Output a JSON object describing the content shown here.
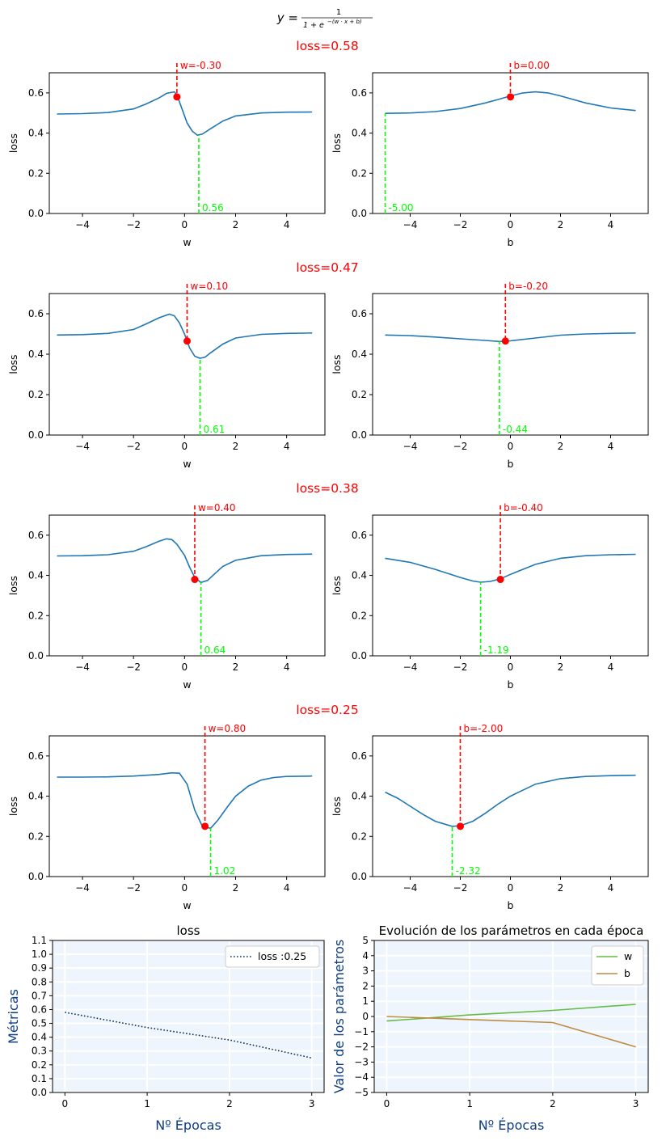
{
  "figure": {
    "formula": {
      "lhs": "y =",
      "numerator": "1",
      "denominator_base": "1 + e",
      "exponent": "−(w · x + b)"
    }
  },
  "colors": {
    "curve": "#1f77b4",
    "current_marker": "#ff0000",
    "minimum_marker": "#00ff00",
    "loss_series": "#0b2e59",
    "w_series": "#66bb44",
    "b_series": "#bf8c40",
    "history_background": "#eef5fd",
    "history_label": "#0d3d80"
  },
  "chart_data": [
    {
      "type": "line",
      "row": 0,
      "panel": "w",
      "row_title": "loss=0.58",
      "xlabel": "w",
      "ylabel": "loss",
      "xlim": [
        -5.3,
        5.5
      ],
      "ylim": [
        0,
        0.7
      ],
      "xticks": [
        -4,
        -2,
        0,
        2,
        4
      ],
      "yticks": [
        0.0,
        0.2,
        0.4,
        0.6
      ],
      "curve": {
        "x": [
          -5,
          -4,
          -3,
          -2,
          -1.5,
          -1,
          -0.7,
          -0.4,
          -0.3,
          -0.1,
          0.1,
          0.3,
          0.5,
          0.7,
          1,
          1.5,
          2,
          3,
          4,
          5
        ],
        "y": [
          0.495,
          0.497,
          0.502,
          0.52,
          0.545,
          0.575,
          0.598,
          0.605,
          0.59,
          0.52,
          0.45,
          0.41,
          0.39,
          0.395,
          0.42,
          0.46,
          0.485,
          0.5,
          0.504,
          0.505
        ]
      },
      "current": {
        "x": -0.3,
        "y": 0.58,
        "label": "w=-0.30"
      },
      "minimum": {
        "x": 0.56,
        "y": 0.39,
        "label": "0.56"
      }
    },
    {
      "type": "line",
      "row": 0,
      "panel": "b",
      "xlabel": "b",
      "ylabel": "loss",
      "xlim": [
        -5.5,
        5.5
      ],
      "ylim": [
        0,
        0.7
      ],
      "xticks": [
        -4,
        -2,
        0,
        2,
        4
      ],
      "yticks": [
        0.0,
        0.2,
        0.4,
        0.6
      ],
      "curve": {
        "x": [
          -5,
          -4,
          -3,
          -2,
          -1,
          -0.5,
          0,
          0.5,
          1,
          1.5,
          2,
          3,
          4,
          5
        ],
        "y": [
          0.498,
          0.5,
          0.507,
          0.522,
          0.55,
          0.567,
          0.585,
          0.6,
          0.605,
          0.6,
          0.585,
          0.55,
          0.525,
          0.512
        ]
      },
      "current": {
        "x": 0.0,
        "y": 0.58,
        "label": "b=0.00"
      },
      "minimum": {
        "x": -5.0,
        "y": 0.498,
        "label": "-5.00"
      }
    },
    {
      "type": "line",
      "row": 1,
      "panel": "w",
      "row_title": "loss=0.47",
      "xlabel": "w",
      "ylabel": "loss",
      "xlim": [
        -5.3,
        5.5
      ],
      "ylim": [
        0,
        0.7
      ],
      "xticks": [
        -4,
        -2,
        0,
        2,
        4
      ],
      "yticks": [
        0.0,
        0.2,
        0.4,
        0.6
      ],
      "curve": {
        "x": [
          -5,
          -4,
          -3,
          -2,
          -1.5,
          -1,
          -0.6,
          -0.4,
          -0.2,
          0,
          0.2,
          0.4,
          0.6,
          0.8,
          1,
          1.5,
          2,
          3,
          4,
          5
        ],
        "y": [
          0.495,
          0.497,
          0.503,
          0.522,
          0.55,
          0.58,
          0.598,
          0.59,
          0.555,
          0.5,
          0.43,
          0.39,
          0.38,
          0.385,
          0.405,
          0.45,
          0.48,
          0.498,
          0.503,
          0.505
        ]
      },
      "current": {
        "x": 0.1,
        "y": 0.465,
        "label": "w=0.10"
      },
      "minimum": {
        "x": 0.61,
        "y": 0.38,
        "label": "0.61"
      }
    },
    {
      "type": "line",
      "row": 1,
      "panel": "b",
      "xlabel": "b",
      "ylabel": "loss",
      "xlim": [
        -5.5,
        5.5
      ],
      "ylim": [
        0,
        0.7
      ],
      "xticks": [
        -4,
        -2,
        0,
        2,
        4
      ],
      "yticks": [
        0.0,
        0.2,
        0.4,
        0.6
      ],
      "curve": {
        "x": [
          -5,
          -4,
          -3,
          -2,
          -1,
          -0.44,
          0,
          1,
          2,
          3,
          4,
          5
        ],
        "y": [
          0.495,
          0.492,
          0.485,
          0.476,
          0.468,
          0.463,
          0.466,
          0.48,
          0.494,
          0.5,
          0.503,
          0.505
        ]
      },
      "current": {
        "x": -0.2,
        "y": 0.465,
        "label": "b=-0.20"
      },
      "minimum": {
        "x": -0.44,
        "y": 0.463,
        "label": "-0.44"
      }
    },
    {
      "type": "line",
      "row": 2,
      "panel": "w",
      "row_title": "loss=0.38",
      "xlabel": "w",
      "ylabel": "loss",
      "xlim": [
        -5.3,
        5.5
      ],
      "ylim": [
        0,
        0.7
      ],
      "xticks": [
        -4,
        -2,
        0,
        2,
        4
      ],
      "yticks": [
        0.0,
        0.2,
        0.4,
        0.6
      ],
      "curve": {
        "x": [
          -5,
          -4,
          -3,
          -2,
          -1.5,
          -1,
          -0.7,
          -0.5,
          -0.3,
          0,
          0.2,
          0.4,
          0.64,
          0.9,
          1.2,
          1.5,
          2,
          3,
          4,
          5
        ],
        "y": [
          0.497,
          0.498,
          0.503,
          0.52,
          0.543,
          0.57,
          0.582,
          0.578,
          0.555,
          0.5,
          0.44,
          0.39,
          0.365,
          0.375,
          0.41,
          0.445,
          0.475,
          0.498,
          0.504,
          0.506
        ]
      },
      "current": {
        "x": 0.4,
        "y": 0.38,
        "label": "w=0.40"
      },
      "minimum": {
        "x": 0.64,
        "y": 0.365,
        "label": "0.64"
      }
    },
    {
      "type": "line",
      "row": 2,
      "panel": "b",
      "xlabel": "b",
      "ylabel": "loss",
      "xlim": [
        -5.5,
        5.5
      ],
      "ylim": [
        0,
        0.7
      ],
      "xticks": [
        -4,
        -2,
        0,
        2,
        4
      ],
      "yticks": [
        0.0,
        0.2,
        0.4,
        0.6
      ],
      "curve": {
        "x": [
          -5,
          -4,
          -3,
          -2,
          -1.5,
          -1.19,
          -0.8,
          -0.4,
          0,
          1,
          2,
          3,
          4,
          5
        ],
        "y": [
          0.485,
          0.465,
          0.43,
          0.39,
          0.372,
          0.366,
          0.37,
          0.383,
          0.405,
          0.455,
          0.485,
          0.498,
          0.503,
          0.505
        ]
      },
      "current": {
        "x": -0.4,
        "y": 0.38,
        "label": "b=-0.40"
      },
      "minimum": {
        "x": -1.19,
        "y": 0.366,
        "label": "-1.19"
      }
    },
    {
      "type": "line",
      "row": 3,
      "panel": "w",
      "row_title": "loss=0.25",
      "xlabel": "w",
      "ylabel": "loss",
      "xlim": [
        -5.3,
        5.5
      ],
      "ylim": [
        0,
        0.7
      ],
      "xticks": [
        -4,
        -2,
        0,
        2,
        4
      ],
      "yticks": [
        0.0,
        0.2,
        0.4,
        0.6
      ],
      "curve": {
        "x": [
          -5,
          -4,
          -3,
          -2,
          -1,
          -0.5,
          -0.2,
          0.1,
          0.4,
          0.7,
          1.02,
          1.3,
          1.7,
          2,
          2.5,
          3,
          3.5,
          4,
          5
        ],
        "y": [
          0.495,
          0.495,
          0.496,
          0.5,
          0.508,
          0.516,
          0.514,
          0.46,
          0.33,
          0.25,
          0.24,
          0.28,
          0.35,
          0.4,
          0.45,
          0.48,
          0.493,
          0.498,
          0.5
        ]
      },
      "current": {
        "x": 0.8,
        "y": 0.25,
        "label": "w=0.80"
      },
      "minimum": {
        "x": 1.02,
        "y": 0.24,
        "label": "1.02"
      }
    },
    {
      "type": "line",
      "row": 3,
      "panel": "b",
      "xlabel": "b",
      "ylabel": "loss",
      "xlim": [
        -5.5,
        5.5
      ],
      "ylim": [
        0,
        0.7
      ],
      "xticks": [
        -4,
        -2,
        0,
        2,
        4
      ],
      "yticks": [
        0.0,
        0.2,
        0.4,
        0.6
      ],
      "curve": {
        "x": [
          -5,
          -4.5,
          -4,
          -3.5,
          -3,
          -2.32,
          -2,
          -1.5,
          -1,
          -0.5,
          0,
          1,
          2,
          3,
          4,
          5
        ],
        "y": [
          0.42,
          0.39,
          0.35,
          0.31,
          0.275,
          0.25,
          0.253,
          0.275,
          0.315,
          0.36,
          0.4,
          0.46,
          0.487,
          0.498,
          0.502,
          0.504
        ]
      },
      "current": {
        "x": -2.0,
        "y": 0.25,
        "label": "b=-2.00"
      },
      "minimum": {
        "x": -2.32,
        "y": 0.25,
        "label": "-2.32"
      }
    },
    {
      "type": "line",
      "panel": "history-loss",
      "title": "loss",
      "xlabel": "Nº Épocas",
      "ylabel": "Métricas",
      "xlim": [
        -0.15,
        3.15
      ],
      "ylim": [
        0,
        1.1
      ],
      "xticks": [
        0,
        1,
        2,
        3
      ],
      "yticks": [
        0.0,
        0.1,
        0.2,
        0.3,
        0.4,
        0.5,
        0.6,
        0.7,
        0.8,
        0.9,
        1.0,
        1.1
      ],
      "grid": true,
      "legend": "top-right",
      "series": [
        {
          "name": "loss :0.25",
          "style": "dotted",
          "x": [
            0,
            1,
            2,
            3
          ],
          "values": [
            0.58,
            0.47,
            0.38,
            0.25
          ]
        }
      ]
    },
    {
      "type": "line",
      "panel": "history-params",
      "title": "Evolución de los parámetros en cada época",
      "xlabel": "Nº Épocas",
      "ylabel": "Valor de los parámetros",
      "xlim": [
        -0.15,
        3.15
      ],
      "ylim": [
        -5,
        5
      ],
      "xticks": [
        0,
        1,
        2,
        3
      ],
      "yticks": [
        -5,
        -4,
        -3,
        -2,
        -1,
        0,
        1,
        2,
        3,
        4,
        5
      ],
      "grid": true,
      "legend": "top-right",
      "series": [
        {
          "name": "w",
          "x": [
            0,
            1,
            2,
            3
          ],
          "values": [
            -0.3,
            0.1,
            0.4,
            0.8
          ]
        },
        {
          "name": "b",
          "x": [
            0,
            1,
            2,
            3
          ],
          "values": [
            0.0,
            -0.2,
            -0.4,
            -2.0
          ]
        }
      ]
    }
  ]
}
